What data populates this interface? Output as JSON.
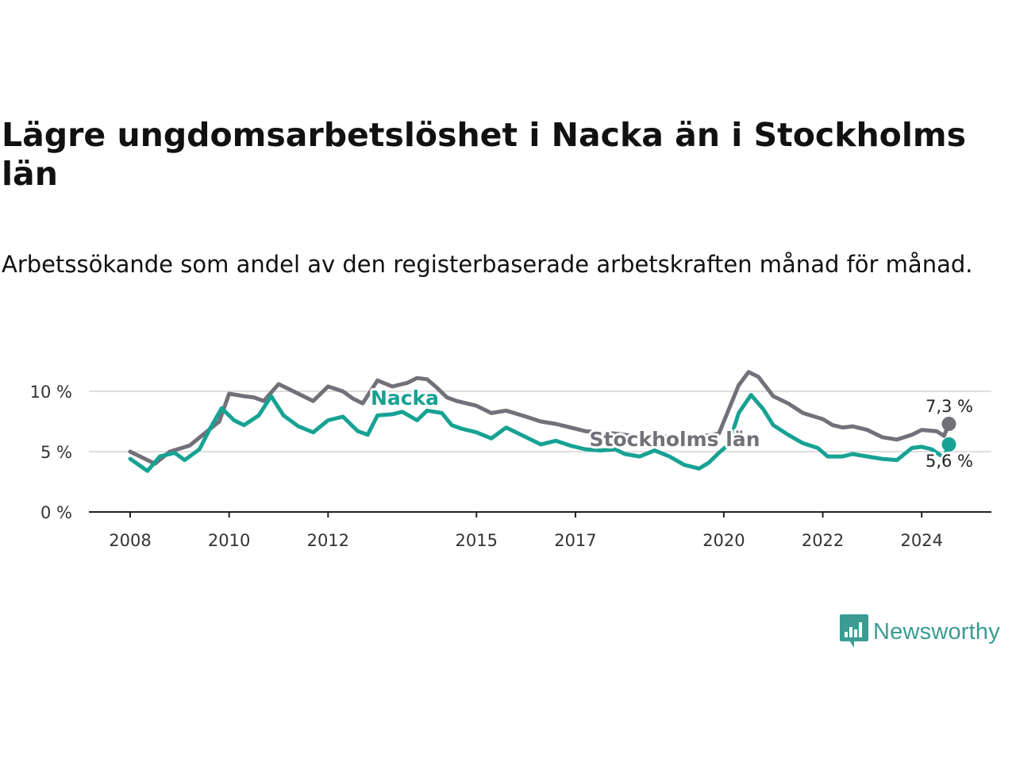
{
  "title": "Lägre ungdomsarbetslöshet i Nacka än i Stockholms län",
  "subtitle": "Arbetssökande som andel av den registerbaserade arbetskraften månad för månad.",
  "brand": {
    "name": "Newsworthy",
    "color": "#3a9c92",
    "icon": "bar-chart-speech-bubble-icon"
  },
  "colors": {
    "nacka": "#17a294",
    "stockholm": "#727078",
    "grid": "#d4d4d4",
    "axis": "#222222"
  },
  "chart_data": {
    "type": "line",
    "title": "Lägre ungdomsarbetslöshet i Nacka än i Stockholms län",
    "xlabel": "",
    "ylabel": "",
    "xlim": [
      2008,
      2025.0
    ],
    "ylim": [
      0,
      10
    ],
    "x_ticks": [
      2008,
      2010,
      2012,
      2015,
      2017,
      2020,
      2022,
      2024
    ],
    "x_tick_labels": [
      "2008",
      "2010",
      "2012",
      "2015",
      "2017",
      "2020",
      "2022",
      "2024"
    ],
    "y_ticks": [
      0,
      5,
      10
    ],
    "y_tick_labels": [
      "0 %",
      "5 %",
      "10 %"
    ],
    "series": [
      {
        "name": "Stockholms län",
        "label": "Stockholms län",
        "color": "#727078",
        "end_label": "7,3 %",
        "points": [
          [
            2008.0,
            5.0
          ],
          [
            2008.5,
            4.0
          ],
          [
            2008.8,
            5.0
          ],
          [
            2009.2,
            5.5
          ],
          [
            2009.5,
            6.5
          ],
          [
            2009.8,
            7.5
          ],
          [
            2010.0,
            9.8
          ],
          [
            2010.3,
            9.6
          ],
          [
            2010.5,
            9.5
          ],
          [
            2010.7,
            9.2
          ],
          [
            2011.0,
            10.6
          ],
          [
            2011.3,
            10.0
          ],
          [
            2011.5,
            9.6
          ],
          [
            2011.7,
            9.2
          ],
          [
            2012.0,
            10.4
          ],
          [
            2012.3,
            10.0
          ],
          [
            2012.5,
            9.4
          ],
          [
            2012.7,
            9.0
          ],
          [
            2013.0,
            10.9
          ],
          [
            2013.3,
            10.4
          ],
          [
            2013.6,
            10.7
          ],
          [
            2013.8,
            11.1
          ],
          [
            2014.0,
            11.0
          ],
          [
            2014.2,
            10.3
          ],
          [
            2014.4,
            9.5
          ],
          [
            2014.6,
            9.2
          ],
          [
            2015.0,
            8.8
          ],
          [
            2015.3,
            8.2
          ],
          [
            2015.6,
            8.4
          ],
          [
            2016.0,
            7.9
          ],
          [
            2016.3,
            7.5
          ],
          [
            2016.6,
            7.3
          ],
          [
            2016.9,
            7.0
          ],
          [
            2017.2,
            6.7
          ],
          [
            2017.5,
            6.6
          ],
          [
            2017.8,
            6.5
          ],
          [
            2018.0,
            6.4
          ],
          [
            2018.3,
            6.2
          ],
          [
            2018.6,
            6.3
          ],
          [
            2019.0,
            6.2
          ],
          [
            2019.3,
            6.1
          ],
          [
            2019.6,
            6.3
          ],
          [
            2019.9,
            6.5
          ],
          [
            2020.1,
            8.5
          ],
          [
            2020.3,
            10.5
          ],
          [
            2020.5,
            11.6
          ],
          [
            2020.7,
            11.2
          ],
          [
            2021.0,
            9.6
          ],
          [
            2021.3,
            9.0
          ],
          [
            2021.6,
            8.2
          ],
          [
            2022.0,
            7.7
          ],
          [
            2022.2,
            7.2
          ],
          [
            2022.4,
            7.0
          ],
          [
            2022.6,
            7.1
          ],
          [
            2022.9,
            6.8
          ],
          [
            2023.2,
            6.2
          ],
          [
            2023.5,
            6.0
          ],
          [
            2023.8,
            6.4
          ],
          [
            2024.0,
            6.8
          ],
          [
            2024.3,
            6.7
          ],
          [
            2024.45,
            6.3
          ],
          [
            2024.55,
            7.3
          ]
        ]
      },
      {
        "name": "Nacka",
        "label": "Nacka",
        "color": "#17a294",
        "end_label": "5,6 %",
        "points": [
          [
            2008.0,
            4.4
          ],
          [
            2008.35,
            3.4
          ],
          [
            2008.6,
            4.6
          ],
          [
            2008.9,
            4.9
          ],
          [
            2009.1,
            4.3
          ],
          [
            2009.4,
            5.2
          ],
          [
            2009.6,
            6.8
          ],
          [
            2009.85,
            8.6
          ],
          [
            2010.1,
            7.6
          ],
          [
            2010.3,
            7.2
          ],
          [
            2010.6,
            8.0
          ],
          [
            2010.85,
            9.6
          ],
          [
            2011.1,
            8.0
          ],
          [
            2011.4,
            7.1
          ],
          [
            2011.7,
            6.6
          ],
          [
            2012.0,
            7.6
          ],
          [
            2012.3,
            7.9
          ],
          [
            2012.6,
            6.7
          ],
          [
            2012.8,
            6.4
          ],
          [
            2013.0,
            8.0
          ],
          [
            2013.3,
            8.1
          ],
          [
            2013.5,
            8.3
          ],
          [
            2013.8,
            7.6
          ],
          [
            2014.0,
            8.4
          ],
          [
            2014.3,
            8.2
          ],
          [
            2014.5,
            7.2
          ],
          [
            2014.7,
            6.9
          ],
          [
            2015.0,
            6.6
          ],
          [
            2015.3,
            6.1
          ],
          [
            2015.6,
            7.0
          ],
          [
            2016.0,
            6.2
          ],
          [
            2016.3,
            5.6
          ],
          [
            2016.6,
            5.9
          ],
          [
            2016.9,
            5.5
          ],
          [
            2017.2,
            5.2
          ],
          [
            2017.5,
            5.1
          ],
          [
            2017.8,
            5.2
          ],
          [
            2018.0,
            4.8
          ],
          [
            2018.3,
            4.6
          ],
          [
            2018.6,
            5.1
          ],
          [
            2018.9,
            4.6
          ],
          [
            2019.2,
            3.9
          ],
          [
            2019.5,
            3.6
          ],
          [
            2019.7,
            4.1
          ],
          [
            2019.9,
            4.9
          ],
          [
            2020.1,
            5.6
          ],
          [
            2020.3,
            8.2
          ],
          [
            2020.55,
            9.7
          ],
          [
            2020.8,
            8.5
          ],
          [
            2021.0,
            7.2
          ],
          [
            2021.3,
            6.4
          ],
          [
            2021.6,
            5.7
          ],
          [
            2021.9,
            5.3
          ],
          [
            2022.1,
            4.6
          ],
          [
            2022.4,
            4.6
          ],
          [
            2022.6,
            4.8
          ],
          [
            2022.9,
            4.6
          ],
          [
            2023.2,
            4.4
          ],
          [
            2023.5,
            4.3
          ],
          [
            2023.8,
            5.3
          ],
          [
            2024.0,
            5.4
          ],
          [
            2024.2,
            5.2
          ],
          [
            2024.45,
            4.5
          ],
          [
            2024.55,
            5.6
          ]
        ]
      }
    ]
  }
}
